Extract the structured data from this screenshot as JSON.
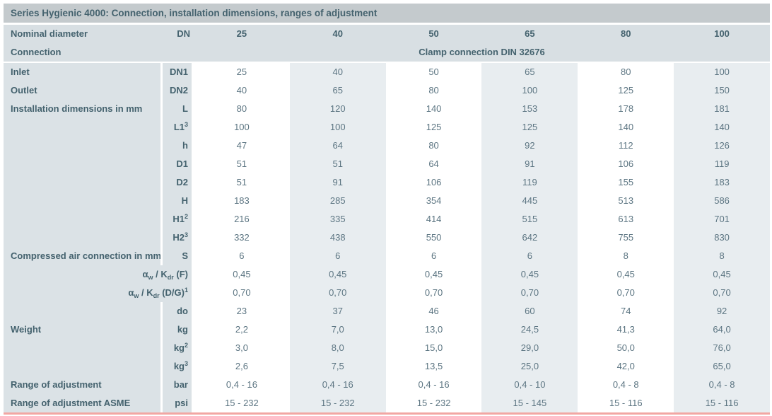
{
  "table": {
    "title": "Series Hygienic 4000: Connection, installation dimensions, ranges of adjustment",
    "header": {
      "label": "Nominal diameter",
      "unit": "DN",
      "columns": [
        "25",
        "40",
        "50",
        "65",
        "80",
        "100"
      ],
      "connection_label": "Connection",
      "connection_value": "Clamp connection DIN 32676"
    },
    "rows": [
      {
        "label": "Inlet",
        "unit": "DN1",
        "values": [
          "25",
          "40",
          "50",
          "65",
          "80",
          "100"
        ]
      },
      {
        "label": "Outlet",
        "unit": "DN2",
        "values": [
          "40",
          "65",
          "80",
          "100",
          "125",
          "150"
        ]
      },
      {
        "label": "Installation dimensions in mm",
        "unit": "L",
        "values": [
          "80",
          "120",
          "140",
          "153",
          "178",
          "181"
        ]
      },
      {
        "label": "",
        "unit": [
          [
            "t",
            "L1"
          ],
          [
            "sup",
            "3"
          ]
        ],
        "values": [
          "100",
          "100",
          "125",
          "125",
          "140",
          "140"
        ]
      },
      {
        "label": "",
        "unit": "h",
        "values": [
          "47",
          "64",
          "80",
          "92",
          "112",
          "126"
        ]
      },
      {
        "label": "",
        "unit": "D1",
        "values": [
          "51",
          "51",
          "64",
          "91",
          "106",
          "119"
        ]
      },
      {
        "label": "",
        "unit": "D2",
        "values": [
          "51",
          "91",
          "106",
          "119",
          "155",
          "183"
        ]
      },
      {
        "label": "",
        "unit": "H",
        "values": [
          "183",
          "285",
          "354",
          "445",
          "513",
          "586"
        ]
      },
      {
        "label": "",
        "unit": [
          [
            "t",
            "H1"
          ],
          [
            "sup",
            "2"
          ]
        ],
        "values": [
          "216",
          "335",
          "414",
          "515",
          "613",
          "701"
        ]
      },
      {
        "label": "",
        "unit": [
          [
            "t",
            "H2"
          ],
          [
            "sup",
            "3"
          ]
        ],
        "values": [
          "332",
          "438",
          "550",
          "642",
          "755",
          "830"
        ]
      },
      {
        "label": "Compressed air connection in mm",
        "unit": "S",
        "values": [
          "6",
          "6",
          "6",
          "6",
          "8",
          "8"
        ]
      },
      {
        "merged": true,
        "label": [
          [
            "t",
            "α"
          ],
          [
            "sub",
            "w"
          ],
          [
            "t",
            " / K"
          ],
          [
            "sub",
            "dr"
          ],
          [
            "t",
            " (F)"
          ]
        ],
        "values": [
          "0,45",
          "0,45",
          "0,45",
          "0,45",
          "0,45",
          "0,45"
        ]
      },
      {
        "merged": true,
        "label": [
          [
            "t",
            "α"
          ],
          [
            "sub",
            "w"
          ],
          [
            "t",
            " / K"
          ],
          [
            "sub",
            "dr"
          ],
          [
            "t",
            " (D/G)"
          ],
          [
            "sup",
            "1"
          ]
        ],
        "values": [
          "0,70",
          "0,70",
          "0,70",
          "0,70",
          "0,70",
          "0,70"
        ]
      },
      {
        "label": "",
        "unit": "do",
        "values": [
          "23",
          "37",
          "46",
          "60",
          "74",
          "92"
        ]
      },
      {
        "label": "Weight",
        "unit": "kg",
        "values": [
          "2,2",
          "7,0",
          "13,0",
          "24,5",
          "41,3",
          "64,0"
        ]
      },
      {
        "label": "",
        "unit": [
          [
            "t",
            "kg"
          ],
          [
            "sup",
            "2"
          ]
        ],
        "values": [
          "3,0",
          "8,0",
          "15,0",
          "29,0",
          "50,0",
          "76,0"
        ]
      },
      {
        "label": "",
        "unit": [
          [
            "t",
            "kg"
          ],
          [
            "sup",
            "3"
          ]
        ],
        "values": [
          "2,6",
          "7,5",
          "13,5",
          "25,0",
          "42,0",
          "65,0"
        ]
      },
      {
        "label": "Range of adjustment",
        "unit": "bar",
        "values": [
          "0,4 - 16",
          "0,4 - 16",
          "0,4 - 16",
          "0,4 - 10",
          "0,4 - 8",
          "0,4 - 8"
        ]
      },
      {
        "label": "Range of adjustment ASME",
        "unit": "psi",
        "values": [
          "15 - 232",
          "15 - 232",
          "15 - 232",
          "15 - 145",
          "15 - 116",
          "15 - 116"
        ]
      }
    ],
    "colors": {
      "title_bg": "#c4cacd",
      "header_bg": "#d8dfe3",
      "side_bg": "#dbe2e6",
      "alt_col_bg": "#e8edf0",
      "text_strong": "#44626e",
      "text_value": "#5c7582",
      "accent_line": "#f2a6a3"
    }
  }
}
